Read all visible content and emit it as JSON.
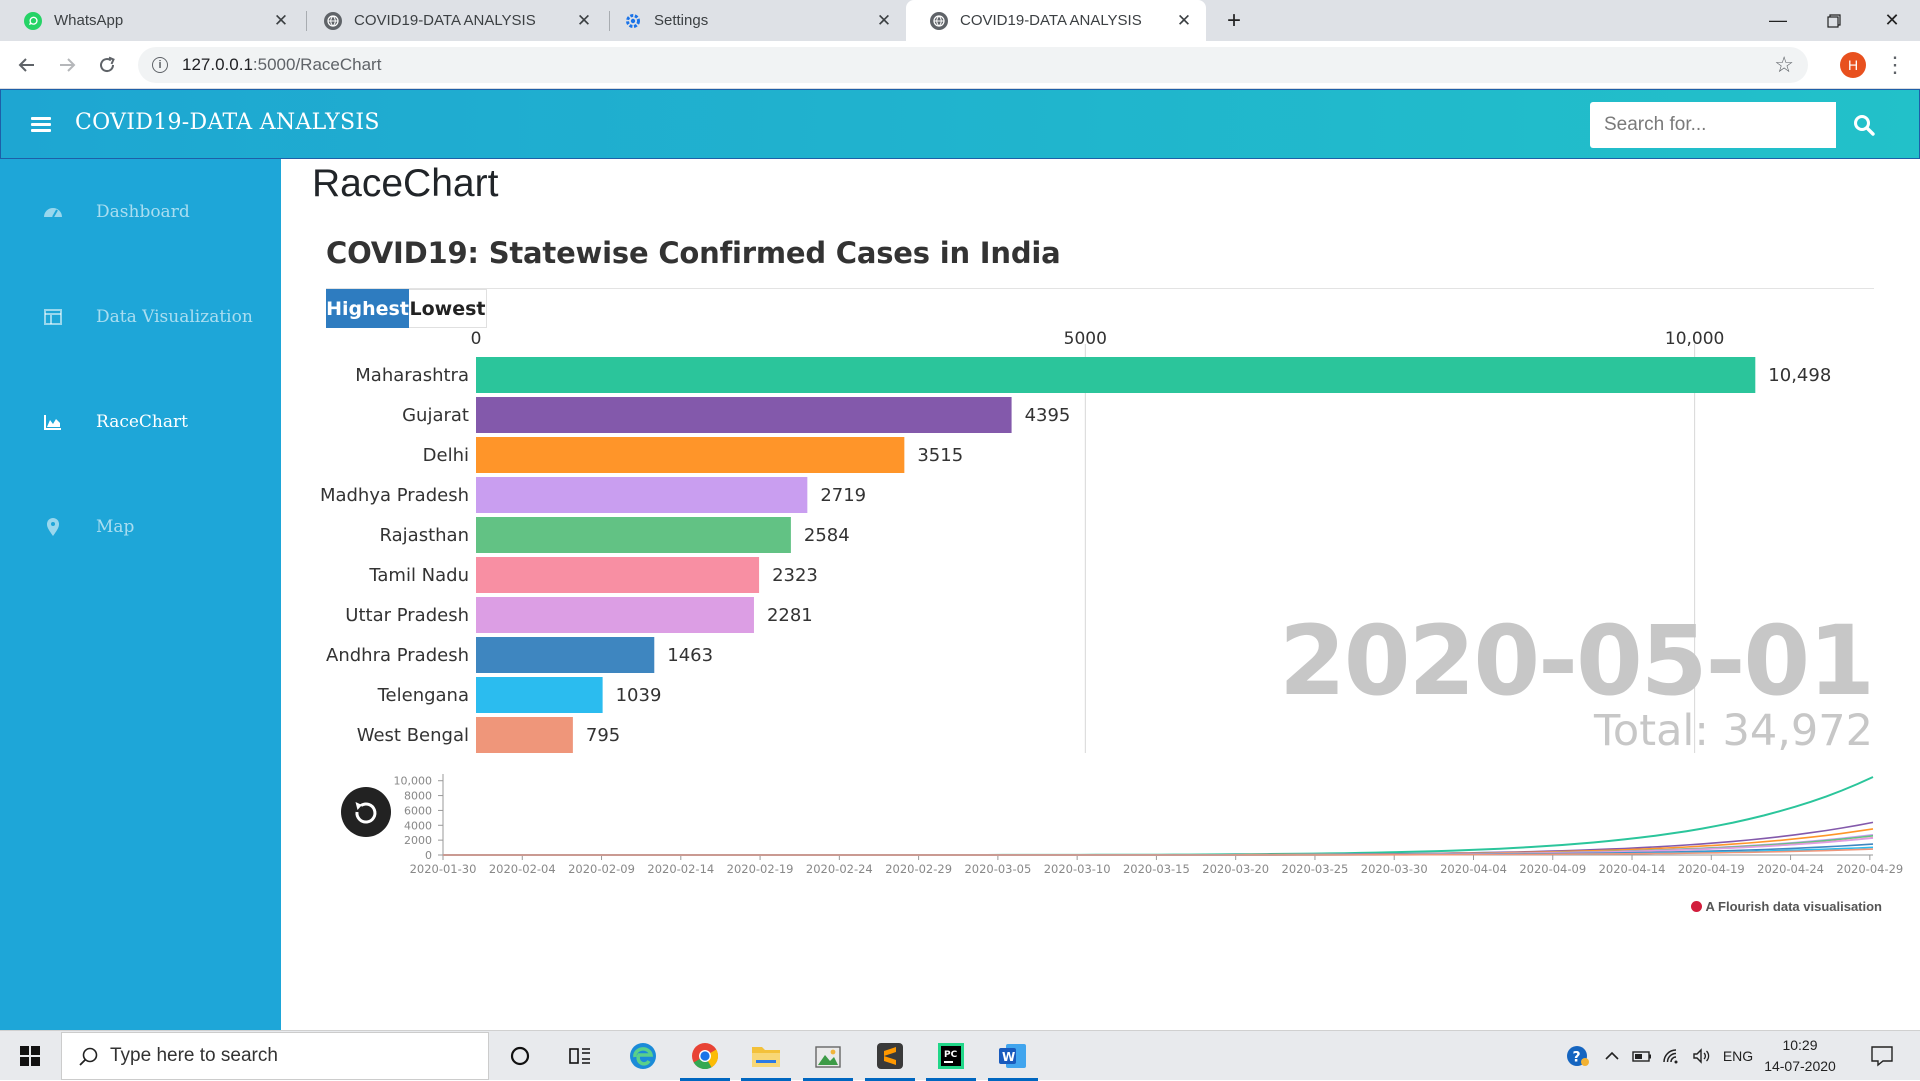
{
  "browser": {
    "tabs": [
      {
        "title": "WhatsApp",
        "active": false
      },
      {
        "title": "COVID19-DATA ANALYSIS",
        "active": false
      },
      {
        "title": "Settings",
        "active": false
      },
      {
        "title": "COVID19-DATA ANALYSIS",
        "active": true
      }
    ],
    "url_host": "127.0.0.1",
    "url_path": ":5000/RaceChart",
    "profile_initial": "H"
  },
  "app": {
    "title": "COVID19-DATA ANALYSIS",
    "search_placeholder": "Search for..."
  },
  "sidebar": {
    "items": [
      {
        "label": "Dashboard",
        "icon": "dashboard-icon",
        "active": false
      },
      {
        "label": "Data Visualization",
        "icon": "table-icon",
        "active": false
      },
      {
        "label": "RaceChart",
        "icon": "area-chart-icon",
        "active": true
      },
      {
        "label": "Map",
        "icon": "map-marker-icon",
        "active": false
      }
    ]
  },
  "main": {
    "page_title": "RaceChart"
  },
  "chart_data": {
    "type": "bar",
    "title": "COVID19: Statewise Confirmed Cases in India",
    "sort_options": [
      "Highest",
      "Lowest"
    ],
    "selected_sort": "Highest",
    "date": "2020-05-01",
    "total_label": "Total: 34,972",
    "x_ticks": [
      0,
      5000,
      10000
    ],
    "x_tick_labels": [
      "0",
      "5000",
      "10,000"
    ],
    "xlim": [
      0,
      11600
    ],
    "categories": [
      "Maharashtra",
      "Gujarat",
      "Delhi",
      "Madhya Pradesh",
      "Rajasthan",
      "Tamil Nadu",
      "Uttar Pradesh",
      "Andhra Pradesh",
      "Telengana",
      "West Bengal"
    ],
    "values": [
      10498,
      4395,
      3515,
      2719,
      2584,
      2323,
      2281,
      1463,
      1039,
      795
    ],
    "value_labels": [
      "10,498",
      "4395",
      "3515",
      "2719",
      "2584",
      "2323",
      "2281",
      "1463",
      "1039",
      "795"
    ],
    "colors": [
      "#2bc59b",
      "#8359ab",
      "#ff9529",
      "#c99ef0",
      "#62c284",
      "#f88fa3",
      "#dc9ee4",
      "#3e86c0",
      "#2bbcef",
      "#ef967a"
    ],
    "timeline": {
      "type": "line",
      "y_ticks": [
        0,
        2000,
        4000,
        6000,
        8000,
        10000
      ],
      "y_tick_labels": [
        "0",
        "2000",
        "4000",
        "6000",
        "8000",
        "10,000"
      ],
      "ylim": [
        0,
        10500
      ],
      "x_tick_labels": [
        "2020-01-30",
        "2020-02-04",
        "2020-02-09",
        "2020-02-14",
        "2020-02-19",
        "2020-02-24",
        "2020-02-29",
        "2020-03-05",
        "2020-03-10",
        "2020-03-15",
        "2020-03-20",
        "2020-03-25",
        "2020-03-30",
        "2020-04-04",
        "2020-04-09",
        "2020-04-14",
        "2020-04-19",
        "2020-04-24",
        "2020-04-29"
      ]
    }
  },
  "footer": {
    "credit": "A Flourish data visualisation"
  },
  "taskbar": {
    "search_placeholder": "Type here to search",
    "language": "ENG",
    "time": "10:29",
    "date": "14-07-2020"
  }
}
